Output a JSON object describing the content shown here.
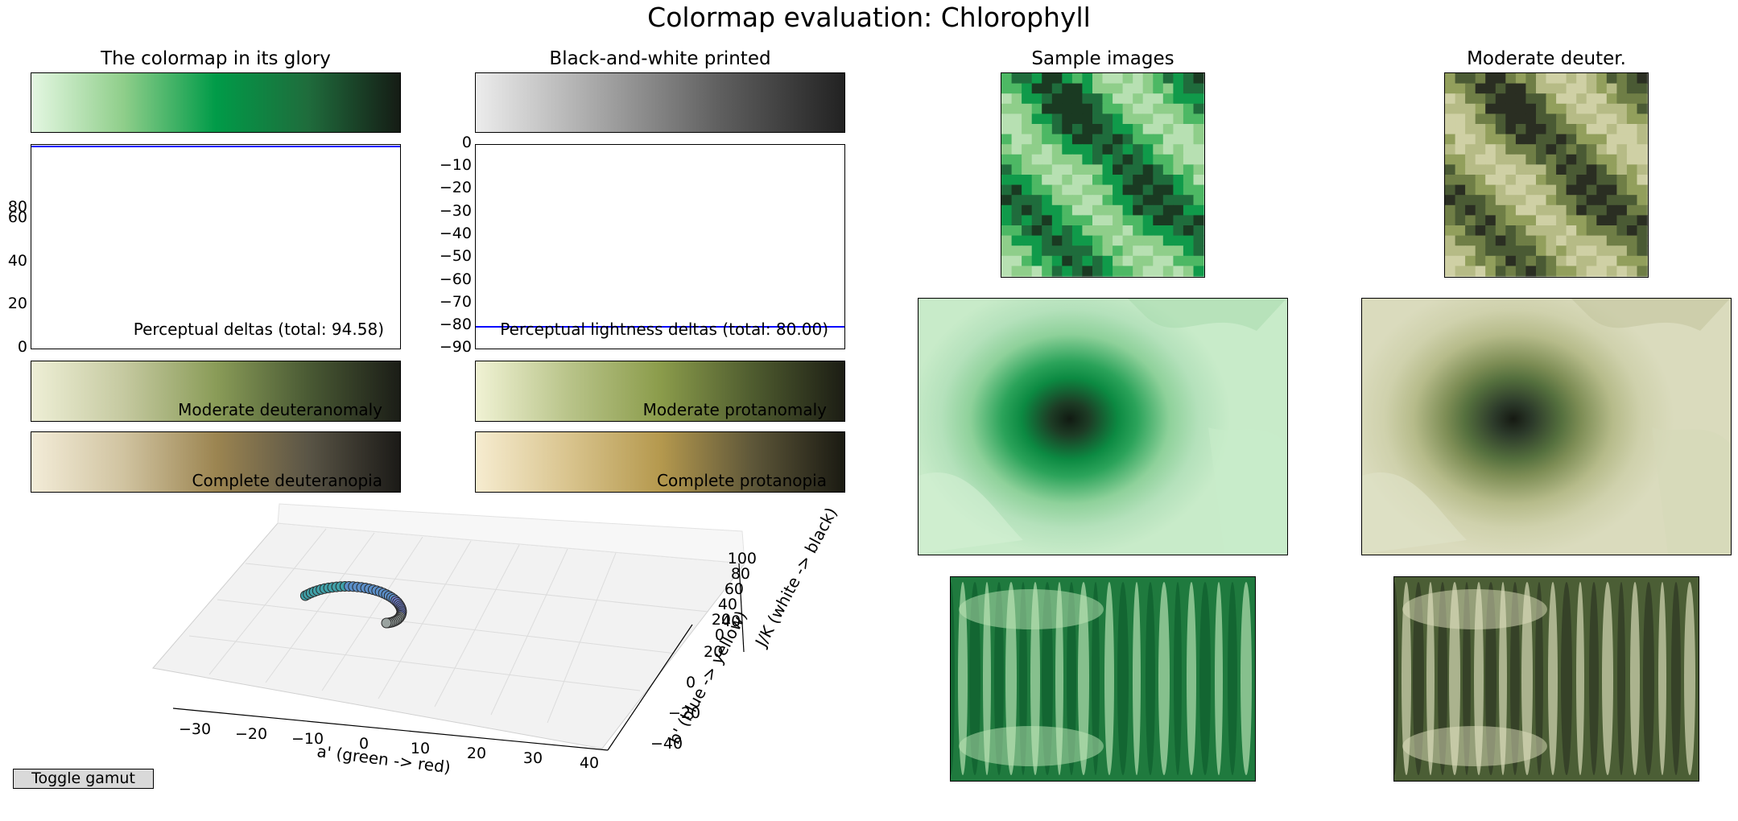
{
  "title": "Colormap evaluation: Chlorophyll",
  "panels": {
    "glory": "The colormap in its glory",
    "bw": "Black-and-white printed",
    "samples": "Sample images",
    "deuter": "Moderate deuter."
  },
  "colorbars": {
    "mod_deuteranomaly": "Moderate deuteranomaly",
    "mod_protanomaly": "Moderate protanomaly",
    "comp_deuteranopia": "Complete deuteranopia",
    "comp_protanopia": "Complete protanopia"
  },
  "colors": {
    "glory": [
      "#e4f7e2",
      "#8fce8a",
      "#009b48",
      "#1f6c3c",
      "#151c15"
    ],
    "bw": [
      "#ececec",
      "#a6a6a6",
      "#5e5e5e",
      "#222222"
    ],
    "mod_deuteranomaly": [
      "#eeefd6",
      "#c5c9a0",
      "#8a9c58",
      "#4a5a34",
      "#1b1d17"
    ],
    "mod_protanomaly": [
      "#f0f2d4",
      "#b9c48a",
      "#8b9c4b",
      "#4f5c2f",
      "#1c1d14"
    ],
    "comp_deuteranopia": [
      "#f3ecd8",
      "#d0c3a0",
      "#9c8551",
      "#5a5546",
      "#1b1a17"
    ],
    "comp_protanopia": [
      "#f6ecd0",
      "#d9c48e",
      "#b5994e",
      "#5e5739",
      "#1a1a12"
    ],
    "line": "#0000ff"
  },
  "chart_data": [
    {
      "type": "line",
      "title": "",
      "annotation": "Perceptual deltas (total: 94.58)",
      "ylim": [
        0,
        95
      ],
      "yticks": [
        "0",
        "20",
        "40",
        "60",
        "80"
      ],
      "series": [
        {
          "values": [
            94.58
          ]
        }
      ]
    },
    {
      "type": "line",
      "annotation": "Perceptual lightness deltas (total: 80.00)",
      "ylim": [
        -90,
        0
      ],
      "yticks": [
        "0",
        "−10",
        "−20",
        "−30",
        "−40",
        "−50",
        "−60",
        "−70",
        "−80",
        "−90"
      ],
      "series": [
        {
          "values": [
            -80.0
          ]
        }
      ]
    },
    {
      "type": "scatter",
      "xlabel": "a' (green -> red)",
      "ylabel": "b' (blue -> yellow)",
      "zlabel": "J/K (white -> black)",
      "xticks": [
        "−30",
        "−20",
        "−10",
        "0",
        "10",
        "20",
        "30",
        "40"
      ],
      "yticks": [
        "−40",
        "−20",
        "0",
        "20",
        "40"
      ],
      "zticks": [
        "0",
        "20",
        "40",
        "60",
        "80",
        "100"
      ]
    }
  ],
  "button": {
    "toggle_gamut": "Toggle gamut"
  }
}
